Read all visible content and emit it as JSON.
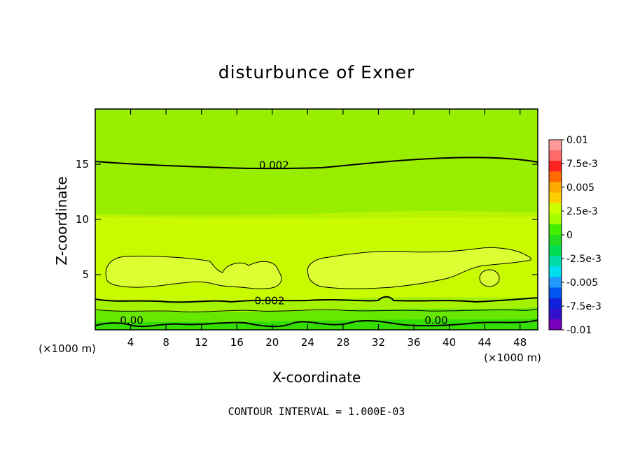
{
  "chart_data": {
    "type": "contour",
    "title": "disturbunce of Exner",
    "xlabel": "X-coordinate",
    "ylabel": "Z-coordinate",
    "x_unit": "(×1000 m)",
    "y_unit": "(×1000 m)",
    "xlim": [
      0,
      50
    ],
    "ylim": [
      0,
      20
    ],
    "x_ticks": [
      4,
      8,
      12,
      16,
      20,
      24,
      28,
      32,
      36,
      40,
      44,
      48
    ],
    "y_ticks": [
      5,
      10,
      15
    ],
    "footer": "CONTOUR INTERVAL = 1.000E-03",
    "contour_labels": [
      {
        "text": "0.002",
        "x": 18.5,
        "z": 14.6
      },
      {
        "text": "0.002",
        "x": 18.0,
        "z": 2.3
      },
      {
        "text": "0.00",
        "x": 2.8,
        "z": 0.55
      },
      {
        "text": "0.00",
        "x": 37.2,
        "z": 0.55
      }
    ],
    "colorbar": {
      "labels": [
        "0.01",
        "7.5e-3",
        "0.005",
        "2.5e-3",
        "0",
        "-2.5e-3",
        "-0.005",
        "-7.5e-3",
        "-0.01"
      ],
      "colors": [
        "#ff9a9a",
        "#ff6a6a",
        "#ff2222",
        "#ff6a00",
        "#ffaa00",
        "#ffd000",
        "#ccff00",
        "#a6ff00",
        "#44ee00",
        "#22dd22",
        "#00dd55",
        "#00ddaa",
        "#00ddee",
        "#2299ff",
        "#0055ee",
        "#1122dd",
        "#3311cc",
        "#7700bb"
      ]
    }
  }
}
